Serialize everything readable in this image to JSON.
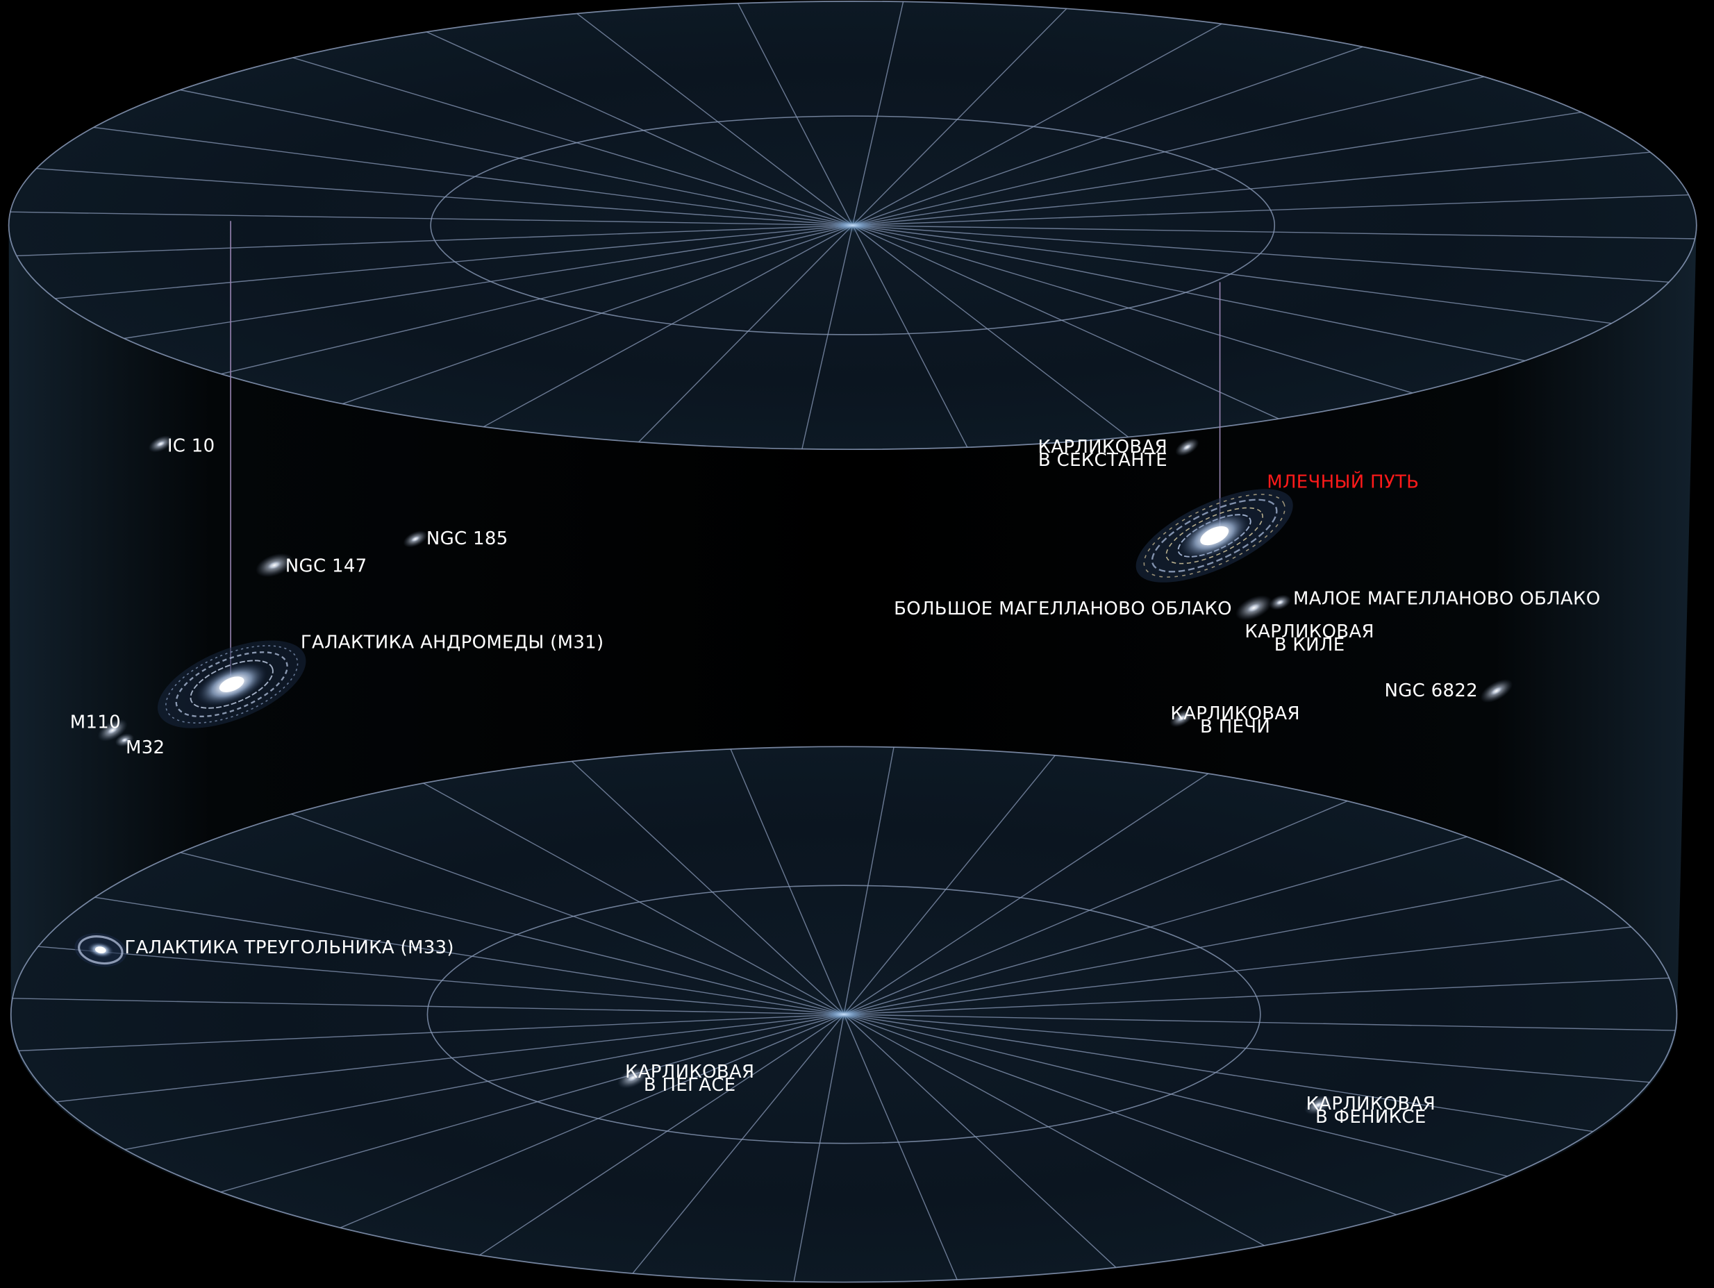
{
  "colors": {
    "background": "#000000",
    "grid": "#8a9ab8",
    "label": "#ffffff",
    "highlight": "#ff1a1a",
    "pointer": "#9a86b4"
  },
  "labels": {
    "ic10": "IC 10",
    "ngc185": "NGC 185",
    "ngc147": "NGC 147",
    "andromeda": "ГАЛАКТИКА АНДРОМЕДЫ (М31)",
    "m110": "M110",
    "m32": "M32",
    "sextans": [
      "КАРЛИКОВАЯ",
      "В СЕКСТАНТЕ"
    ],
    "milky_way": "МЛЕЧНЫЙ ПУТЬ",
    "lmc": "БОЛЬШОЕ МАГЕЛЛАНОВО ОБЛАКО",
    "smc": "МАЛОЕ МАГЕЛЛАНОВО ОБЛАКО",
    "carina": [
      "КАРЛИКОВАЯ",
      "В КИЛЕ"
    ],
    "ngc6822": "NGC 6822",
    "fornax": [
      "КАРЛИКОВАЯ",
      "В ПЕЧИ"
    ],
    "triangulum": "ГАЛАКТИКА ТРЕУГОЛЬНИКА (М33)",
    "pegasus": [
      "КАРЛИКОВАЯ",
      "В ПЕГАСЕ"
    ],
    "phoenix": [
      "КАРЛИКОВАЯ",
      "В ФЕНИКСЕ"
    ]
  }
}
